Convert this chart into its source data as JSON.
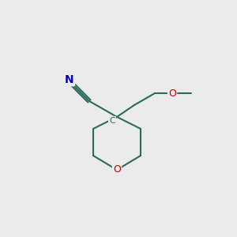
{
  "background_color": "#EBEBEB",
  "bond_color": "#2A6B5E",
  "n_color": "#0000CC",
  "o_color": "#CC0000",
  "c_label_color": "#2A6B5E",
  "ring_oxygen_label": "O",
  "nitrile_n_label": "N",
  "c_label": "C",
  "o_ether_label": "O",
  "figsize": [
    3.0,
    3.0
  ],
  "dpi": 100
}
